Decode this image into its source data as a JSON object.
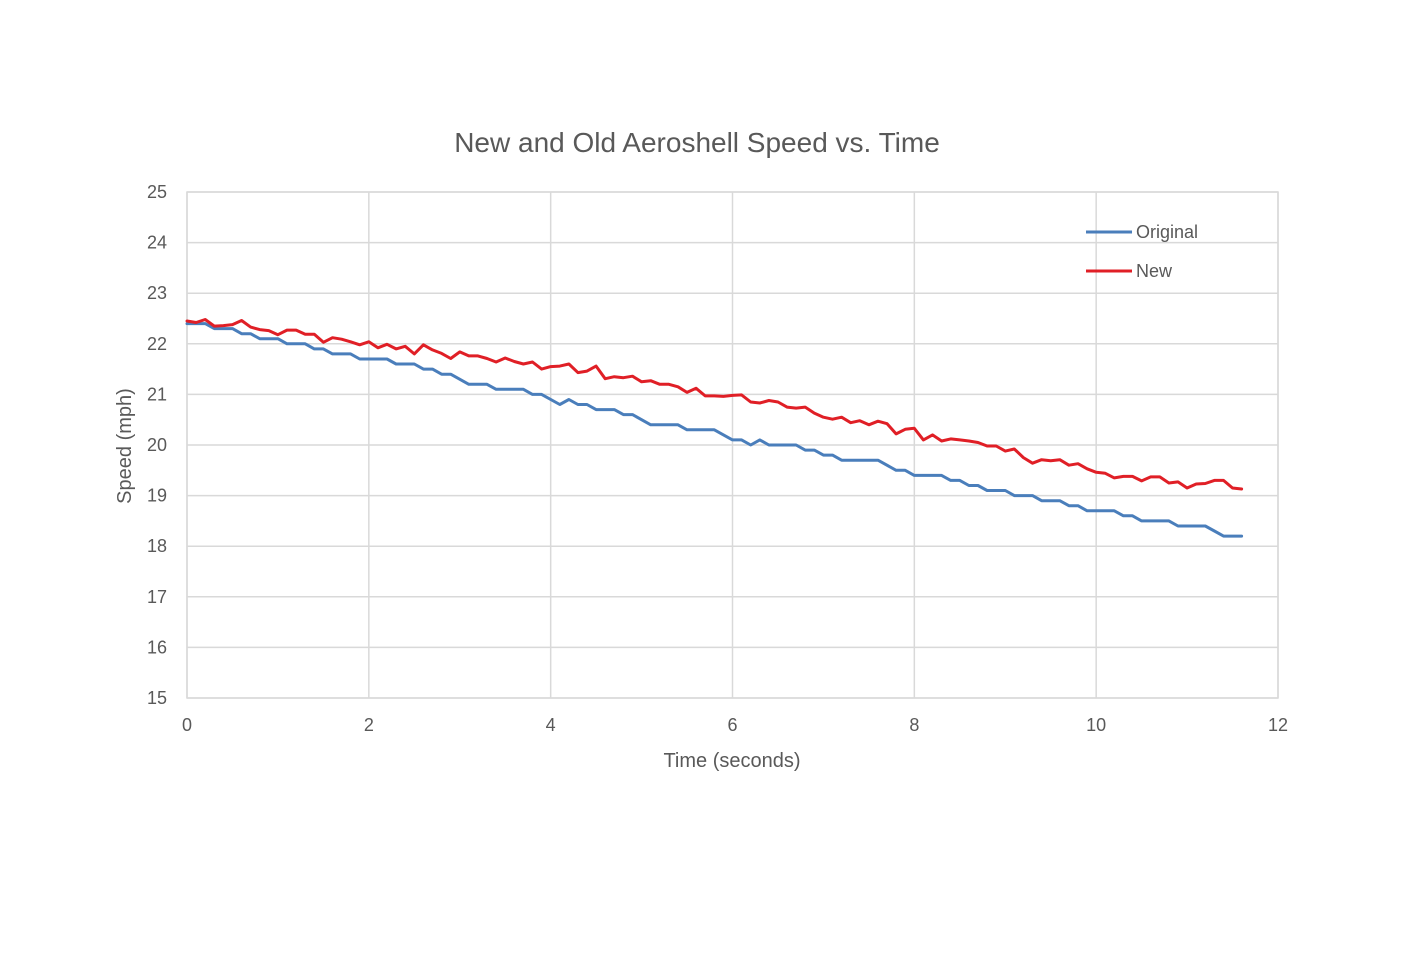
{
  "chart_data": {
    "type": "line",
    "title": "New and Old Aeroshell Speed vs. Time",
    "xlabel": "Time (seconds)",
    "ylabel": "Speed (mph)",
    "xlim": [
      0,
      12
    ],
    "ylim": [
      15,
      25
    ],
    "x_ticks": [
      0,
      2,
      4,
      6,
      8,
      10,
      12
    ],
    "y_ticks": [
      15,
      16,
      17,
      18,
      19,
      20,
      21,
      22,
      23,
      24,
      25
    ],
    "grid": true,
    "legend_position": "top-right",
    "series": [
      {
        "name": "Original",
        "color": "#4a7ebb",
        "points": [
          [
            0.0,
            22.4
          ],
          [
            0.2,
            22.4
          ],
          [
            0.3,
            22.3
          ],
          [
            0.5,
            22.3
          ],
          [
            0.6,
            22.2
          ],
          [
            0.7,
            22.2
          ],
          [
            0.8,
            22.1
          ],
          [
            1.0,
            22.1
          ],
          [
            1.1,
            22.0
          ],
          [
            1.3,
            22.0
          ],
          [
            1.4,
            21.9
          ],
          [
            1.5,
            21.9
          ],
          [
            1.6,
            21.8
          ],
          [
            1.8,
            21.8
          ],
          [
            1.9,
            21.7
          ],
          [
            2.2,
            21.7
          ],
          [
            2.3,
            21.6
          ],
          [
            2.5,
            21.6
          ],
          [
            2.6,
            21.5
          ],
          [
            2.7,
            21.5
          ],
          [
            2.8,
            21.4
          ],
          [
            2.9,
            21.4
          ],
          [
            3.1,
            21.2
          ],
          [
            3.3,
            21.2
          ],
          [
            3.4,
            21.1
          ],
          [
            3.7,
            21.1
          ],
          [
            3.8,
            21.0
          ],
          [
            3.9,
            21.0
          ],
          [
            4.1,
            20.8
          ],
          [
            4.2,
            20.9
          ],
          [
            4.3,
            20.8
          ],
          [
            4.4,
            20.8
          ],
          [
            4.5,
            20.7
          ],
          [
            4.7,
            20.7
          ],
          [
            4.8,
            20.6
          ],
          [
            4.9,
            20.6
          ],
          [
            5.1,
            20.4
          ],
          [
            5.4,
            20.4
          ],
          [
            5.5,
            20.3
          ],
          [
            5.8,
            20.3
          ],
          [
            6.0,
            20.1
          ],
          [
            6.1,
            20.1
          ],
          [
            6.2,
            20.0
          ],
          [
            6.3,
            20.1
          ],
          [
            6.4,
            20.0
          ],
          [
            6.7,
            20.0
          ],
          [
            6.8,
            19.9
          ],
          [
            6.9,
            19.9
          ],
          [
            7.0,
            19.8
          ],
          [
            7.1,
            19.8
          ],
          [
            7.2,
            19.7
          ],
          [
            7.6,
            19.7
          ],
          [
            7.8,
            19.5
          ],
          [
            7.9,
            19.5
          ],
          [
            8.0,
            19.4
          ],
          [
            8.3,
            19.4
          ],
          [
            8.4,
            19.3
          ],
          [
            8.5,
            19.3
          ],
          [
            8.6,
            19.2
          ],
          [
            8.7,
            19.2
          ],
          [
            8.8,
            19.1
          ],
          [
            9.0,
            19.1
          ],
          [
            9.1,
            19.0
          ],
          [
            9.3,
            19.0
          ],
          [
            9.4,
            18.9
          ],
          [
            9.6,
            18.9
          ],
          [
            9.7,
            18.8
          ],
          [
            9.8,
            18.8
          ],
          [
            9.9,
            18.7
          ],
          [
            10.2,
            18.7
          ],
          [
            10.3,
            18.6
          ],
          [
            10.4,
            18.6
          ],
          [
            10.5,
            18.5
          ],
          [
            10.8,
            18.5
          ],
          [
            10.9,
            18.4
          ],
          [
            11.2,
            18.4
          ],
          [
            11.3,
            18.3
          ],
          [
            11.4,
            18.2
          ],
          [
            11.6,
            18.2
          ]
        ]
      },
      {
        "name": "New",
        "color": "#e01f26",
        "points": [
          [
            0.0,
            22.45
          ],
          [
            0.1,
            22.42
          ],
          [
            0.2,
            22.48
          ],
          [
            0.3,
            22.35
          ],
          [
            0.4,
            22.36
          ],
          [
            0.5,
            22.38
          ],
          [
            0.6,
            22.46
          ],
          [
            0.7,
            22.33
          ],
          [
            0.8,
            22.28
          ],
          [
            0.9,
            22.26
          ],
          [
            1.0,
            22.18
          ],
          [
            1.1,
            22.27
          ],
          [
            1.2,
            22.27
          ],
          [
            1.3,
            22.19
          ],
          [
            1.4,
            22.19
          ],
          [
            1.5,
            22.03
          ],
          [
            1.6,
            22.12
          ],
          [
            1.7,
            22.09
          ],
          [
            1.8,
            22.04
          ],
          [
            1.9,
            21.98
          ],
          [
            2.0,
            22.04
          ],
          [
            2.1,
            21.92
          ],
          [
            2.2,
            21.99
          ],
          [
            2.3,
            21.9
          ],
          [
            2.4,
            21.95
          ],
          [
            2.5,
            21.8
          ],
          [
            2.6,
            21.98
          ],
          [
            2.7,
            21.88
          ],
          [
            2.8,
            21.81
          ],
          [
            2.9,
            21.71
          ],
          [
            3.0,
            21.84
          ],
          [
            3.1,
            21.76
          ],
          [
            3.2,
            21.76
          ],
          [
            3.3,
            21.71
          ],
          [
            3.4,
            21.64
          ],
          [
            3.5,
            21.72
          ],
          [
            3.6,
            21.65
          ],
          [
            3.7,
            21.6
          ],
          [
            3.8,
            21.64
          ],
          [
            3.9,
            21.5
          ],
          [
            4.0,
            21.55
          ],
          [
            4.1,
            21.56
          ],
          [
            4.2,
            21.6
          ],
          [
            4.3,
            21.43
          ],
          [
            4.4,
            21.46
          ],
          [
            4.5,
            21.56
          ],
          [
            4.6,
            21.31
          ],
          [
            4.7,
            21.35
          ],
          [
            4.8,
            21.33
          ],
          [
            4.9,
            21.36
          ],
          [
            5.0,
            21.25
          ],
          [
            5.1,
            21.27
          ],
          [
            5.2,
            21.2
          ],
          [
            5.3,
            21.2
          ],
          [
            5.4,
            21.15
          ],
          [
            5.5,
            21.04
          ],
          [
            5.6,
            21.12
          ],
          [
            5.7,
            20.97
          ],
          [
            5.8,
            20.97
          ],
          [
            5.9,
            20.96
          ],
          [
            6.0,
            20.98
          ],
          [
            6.1,
            20.99
          ],
          [
            6.2,
            20.85
          ],
          [
            6.3,
            20.83
          ],
          [
            6.4,
            20.88
          ],
          [
            6.5,
            20.85
          ],
          [
            6.6,
            20.75
          ],
          [
            6.7,
            20.73
          ],
          [
            6.8,
            20.75
          ],
          [
            6.9,
            20.63
          ],
          [
            7.0,
            20.55
          ],
          [
            7.1,
            20.51
          ],
          [
            7.2,
            20.55
          ],
          [
            7.3,
            20.44
          ],
          [
            7.4,
            20.48
          ],
          [
            7.5,
            20.4
          ],
          [
            7.6,
            20.47
          ],
          [
            7.7,
            20.42
          ],
          [
            7.8,
            20.22
          ],
          [
            7.9,
            20.31
          ],
          [
            8.0,
            20.33
          ],
          [
            8.1,
            20.1
          ],
          [
            8.2,
            20.2
          ],
          [
            8.3,
            20.08
          ],
          [
            8.4,
            20.12
          ],
          [
            8.5,
            20.1
          ],
          [
            8.6,
            20.08
          ],
          [
            8.7,
            20.05
          ],
          [
            8.8,
            19.98
          ],
          [
            8.9,
            19.98
          ],
          [
            9.0,
            19.88
          ],
          [
            9.1,
            19.92
          ],
          [
            9.2,
            19.75
          ],
          [
            9.3,
            19.64
          ],
          [
            9.4,
            19.71
          ],
          [
            9.5,
            19.69
          ],
          [
            9.6,
            19.71
          ],
          [
            9.7,
            19.6
          ],
          [
            9.8,
            19.63
          ],
          [
            9.9,
            19.53
          ],
          [
            10.0,
            19.46
          ],
          [
            10.1,
            19.44
          ],
          [
            10.2,
            19.35
          ],
          [
            10.3,
            19.38
          ],
          [
            10.4,
            19.38
          ],
          [
            10.5,
            19.29
          ],
          [
            10.6,
            19.37
          ],
          [
            10.7,
            19.37
          ],
          [
            10.8,
            19.25
          ],
          [
            10.9,
            19.27
          ],
          [
            11.0,
            19.15
          ],
          [
            11.1,
            19.23
          ],
          [
            11.2,
            19.24
          ],
          [
            11.3,
            19.3
          ],
          [
            11.4,
            19.3
          ],
          [
            11.5,
            19.15
          ],
          [
            11.6,
            19.13
          ]
        ]
      }
    ]
  }
}
